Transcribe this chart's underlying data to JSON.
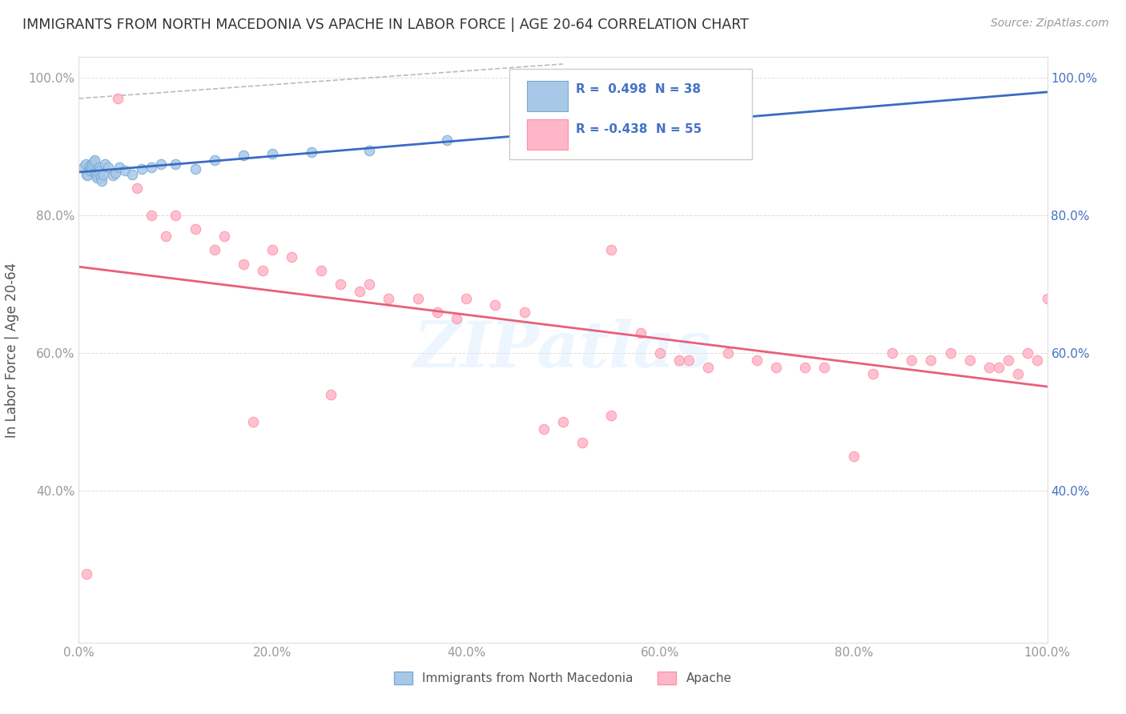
{
  "title": "IMMIGRANTS FROM NORTH MACEDONIA VS APACHE IN LABOR FORCE | AGE 20-64 CORRELATION CHART",
  "source": "Source: ZipAtlas.com",
  "ylabel": "In Labor Force | Age 20-64",
  "xlim": [
    0.0,
    1.0
  ],
  "ylim": [
    0.18,
    1.03
  ],
  "x_ticks": [
    0.0,
    0.2,
    0.4,
    0.6,
    0.8,
    1.0
  ],
  "y_ticks": [
    0.4,
    0.6,
    0.8,
    1.0
  ],
  "x_tick_labels": [
    "0.0%",
    "20.0%",
    "40.0%",
    "60.0%",
    "80.0%",
    "100.0%"
  ],
  "y_tick_labels_left": [
    "40.0%",
    "60.0%",
    "80.0%",
    "100.0%"
  ],
  "y_tick_labels_right": [
    "40.0%",
    "60.0%",
    "80.0%",
    "100.0%"
  ],
  "blue_R": 0.498,
  "blue_N": 38,
  "pink_R": -0.438,
  "pink_N": 55,
  "watermark": "ZIPatlas",
  "blue_scatter_x": [
    0.005,
    0.007,
    0.008,
    0.009,
    0.01,
    0.011,
    0.012,
    0.013,
    0.014,
    0.015,
    0.016,
    0.017,
    0.018,
    0.019,
    0.02,
    0.021,
    0.022,
    0.023,
    0.024,
    0.025,
    0.027,
    0.03,
    0.035,
    0.038,
    0.042,
    0.048,
    0.055,
    0.065,
    0.075,
    0.085,
    0.1,
    0.12,
    0.14,
    0.17,
    0.2,
    0.24,
    0.3,
    0.38
  ],
  "blue_scatter_y": [
    0.87,
    0.875,
    0.86,
    0.858,
    0.868,
    0.872,
    0.865,
    0.87,
    0.875,
    0.878,
    0.88,
    0.862,
    0.858,
    0.855,
    0.862,
    0.87,
    0.865,
    0.855,
    0.85,
    0.86,
    0.875,
    0.87,
    0.858,
    0.862,
    0.87,
    0.865,
    0.86,
    0.868,
    0.87,
    0.875,
    0.875,
    0.868,
    0.88,
    0.888,
    0.89,
    0.892,
    0.895,
    0.91
  ],
  "pink_scatter_x": [
    0.008,
    0.04,
    0.06,
    0.075,
    0.09,
    0.1,
    0.12,
    0.14,
    0.15,
    0.17,
    0.19,
    0.2,
    0.22,
    0.25,
    0.27,
    0.29,
    0.3,
    0.32,
    0.35,
    0.37,
    0.39,
    0.4,
    0.43,
    0.46,
    0.5,
    0.52,
    0.55,
    0.58,
    0.6,
    0.62,
    0.63,
    0.65,
    0.67,
    0.7,
    0.72,
    0.75,
    0.77,
    0.8,
    0.82,
    0.84,
    0.86,
    0.88,
    0.9,
    0.92,
    0.94,
    0.95,
    0.96,
    0.97,
    0.98,
    0.99,
    1.0,
    0.55,
    0.48,
    0.26,
    0.18
  ],
  "pink_scatter_y": [
    0.28,
    0.97,
    0.84,
    0.8,
    0.77,
    0.8,
    0.78,
    0.75,
    0.77,
    0.73,
    0.72,
    0.75,
    0.74,
    0.72,
    0.7,
    0.69,
    0.7,
    0.68,
    0.68,
    0.66,
    0.65,
    0.68,
    0.67,
    0.66,
    0.5,
    0.47,
    0.75,
    0.63,
    0.6,
    0.59,
    0.59,
    0.58,
    0.6,
    0.59,
    0.58,
    0.58,
    0.58,
    0.45,
    0.57,
    0.6,
    0.59,
    0.59,
    0.6,
    0.59,
    0.58,
    0.58,
    0.59,
    0.57,
    0.6,
    0.59,
    0.68,
    0.51,
    0.49,
    0.54,
    0.5
  ]
}
